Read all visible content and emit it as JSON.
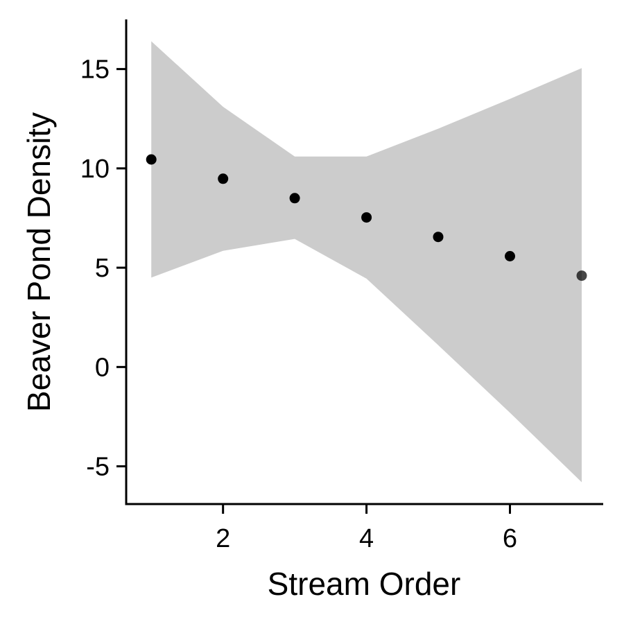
{
  "chart_data": {
    "type": "scatter",
    "xlabel": "Stream Order",
    "ylabel": "Beaver Pond Density",
    "xlim": [
      0.65,
      7.3
    ],
    "ylim": [
      -6.9,
      17.5
    ],
    "x_ticks": [
      2,
      4,
      6
    ],
    "x_tick_labels": [
      "2",
      "4",
      "6"
    ],
    "y_ticks": [
      -5,
      0,
      5,
      10,
      15
    ],
    "y_tick_labels": [
      "-5",
      "0",
      "5",
      "10",
      "15"
    ],
    "grid": false,
    "legend": "none",
    "points": [
      {
        "x": 1,
        "y": 10.45
      },
      {
        "x": 2,
        "y": 9.48
      },
      {
        "x": 3,
        "y": 8.5
      },
      {
        "x": 4,
        "y": 7.53
      },
      {
        "x": 5,
        "y": 6.55
      },
      {
        "x": 6,
        "y": 5.58
      },
      {
        "x": 7,
        "y": 4.6
      }
    ],
    "confidence_band": {
      "x": [
        1,
        2,
        3,
        4,
        5,
        6,
        7
      ],
      "lower": [
        4.5,
        5.85,
        6.45,
        4.45,
        1.1,
        -2.3,
        -5.8
      ],
      "upper": [
        16.4,
        13.1,
        10.6,
        10.6,
        12.0,
        13.5,
        15.05
      ]
    },
    "colors": {
      "point": "#000000",
      "band": "#cccccc",
      "axis": "#000000"
    }
  }
}
